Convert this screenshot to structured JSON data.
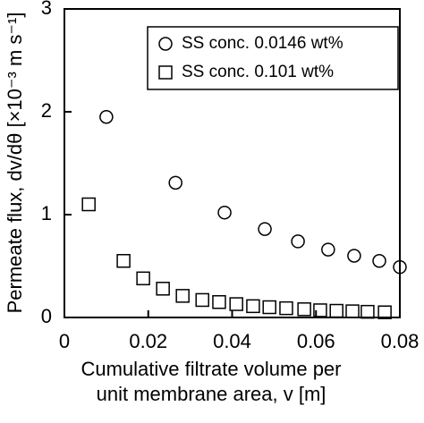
{
  "chart_data": {
    "type": "scatter",
    "x_label": [
      "Cumulative filtrate volume per",
      "unit membrane area, v [m]"
    ],
    "y_label": "Permeate flux, dv/dθ [×10⁻³ m s⁻¹]",
    "xlim": [
      0,
      0.08
    ],
    "xticks": [
      0,
      0.02,
      0.04,
      0.06,
      0.08
    ],
    "ylim": [
      0,
      3
    ],
    "yticks": [
      0,
      1,
      2,
      3
    ],
    "legend": "upper right",
    "series": [
      {
        "name": "SS conc. 0.0146 wt%",
        "color": "#000000",
        "marker": "circle",
        "x": [
          0.01,
          0.0265,
          0.0382,
          0.0478,
          0.0557,
          0.0629,
          0.0691,
          0.0751,
          0.08
        ],
        "values": [
          1.95,
          1.31,
          1.02,
          0.86,
          0.74,
          0.66,
          0.6,
          0.55,
          0.49
        ]
      },
      {
        "name": "SS conc. 0.101 wt%",
        "color": "#000000",
        "marker": "square",
        "x": [
          0.0058,
          0.0141,
          0.0188,
          0.0235,
          0.0282,
          0.0329,
          0.0369,
          0.041,
          0.045,
          0.0489,
          0.0529,
          0.0572,
          0.061,
          0.0649,
          0.0687,
          0.0723,
          0.0764
        ],
        "values": [
          1.1,
          0.55,
          0.38,
          0.28,
          0.21,
          0.17,
          0.15,
          0.13,
          0.11,
          0.1,
          0.09,
          0.08,
          0.07,
          0.065,
          0.06,
          0.055,
          0.05
        ]
      }
    ]
  }
}
